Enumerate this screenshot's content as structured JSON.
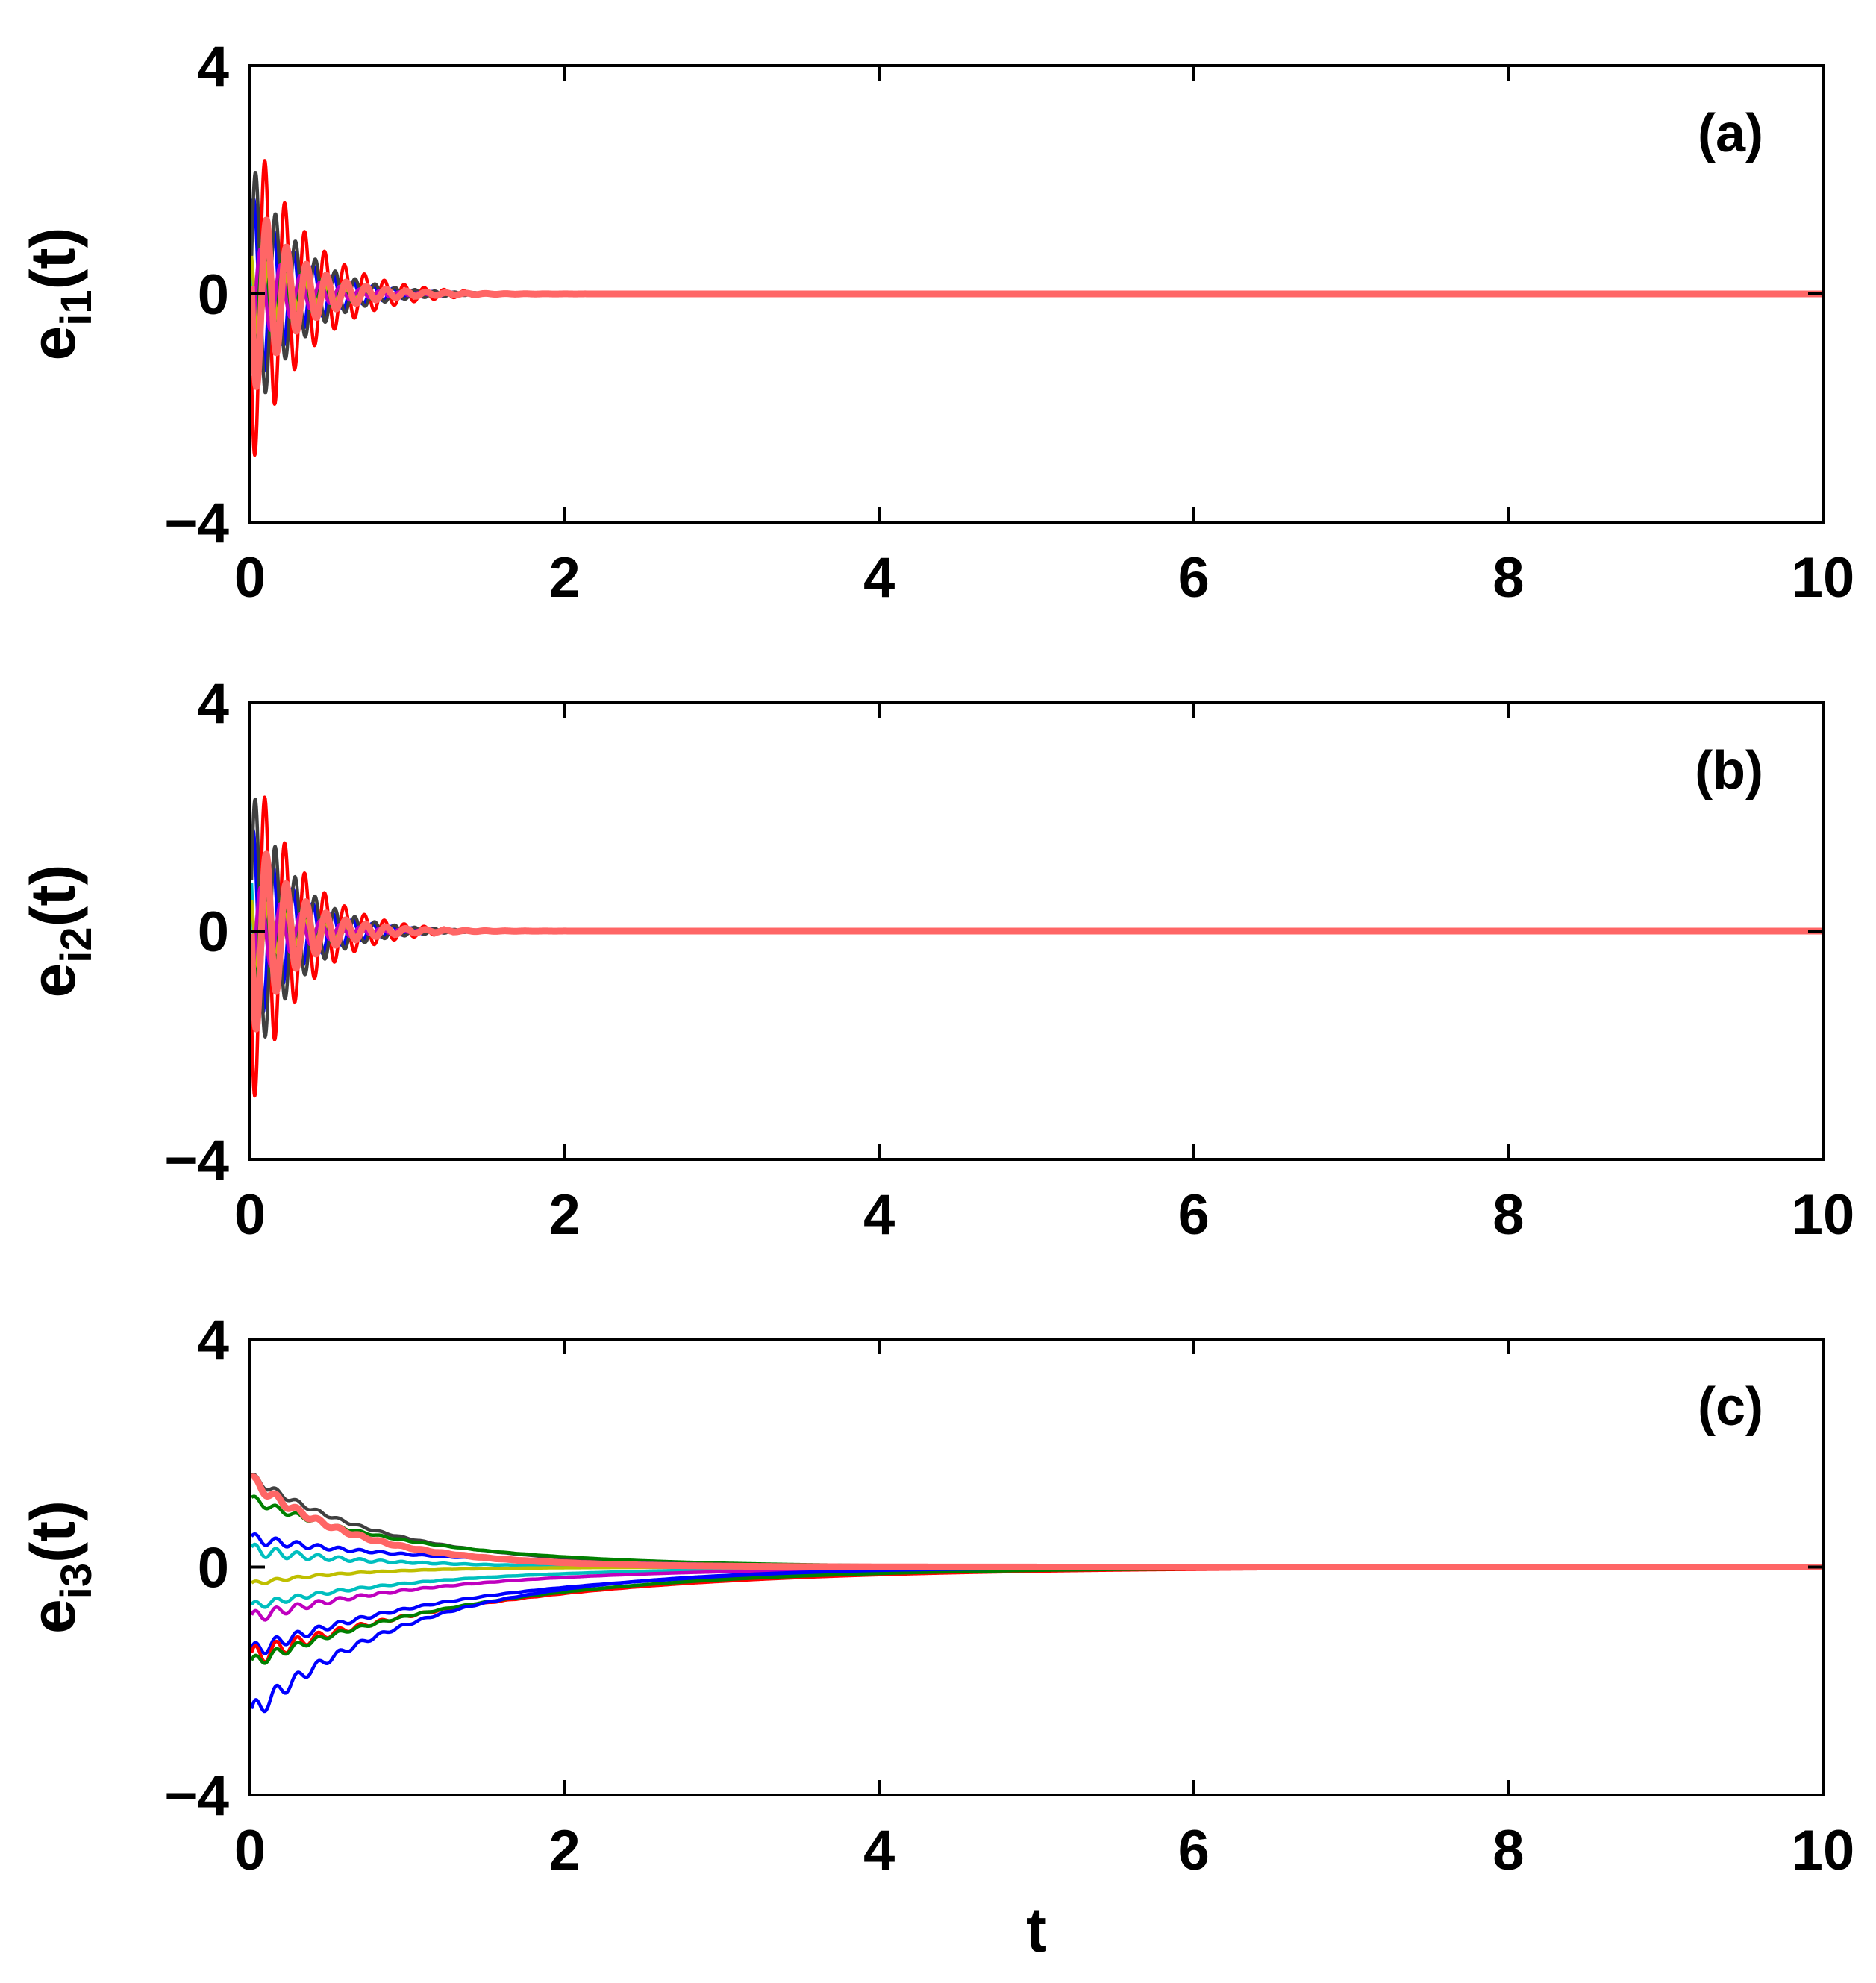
{
  "chart_data": [
    {
      "type": "line",
      "panel_label": "(a)",
      "ylabel": {
        "main": "e",
        "sub": "i1",
        "suffix": "(t)"
      },
      "xlabel": "",
      "xlim": [
        0,
        10
      ],
      "ylim": [
        -4,
        4
      ],
      "xticks": [
        "0",
        "2",
        "4",
        "6",
        "8",
        "10"
      ],
      "yticks": [
        "4",
        "0",
        "−4"
      ],
      "grid": false,
      "series": [
        {
          "color": "#ff0000",
          "kind": "osc",
          "amp": 3.1,
          "decay": 3.0,
          "freq": 7.9,
          "phase": 1.57
        },
        {
          "color": "#0000ff",
          "kind": "osc",
          "amp": 1.8,
          "decay": 3.2,
          "freq": 7.9,
          "phase": -1.2
        },
        {
          "color": "#404040",
          "kind": "osc",
          "amp": 2.4,
          "decay": 3.3,
          "freq": 7.9,
          "phase": -1.8
        },
        {
          "color": "#00bfbf",
          "kind": "osc",
          "amp": 1.5,
          "decay": 3.4,
          "freq": 7.9,
          "phase": 0.6
        },
        {
          "color": "#008000",
          "kind": "osc",
          "amp": 1.2,
          "decay": 3.4,
          "freq": 7.9,
          "phase": 2.3
        },
        {
          "color": "#bfbf00",
          "kind": "osc",
          "amp": 0.9,
          "decay": 3.5,
          "freq": 7.9,
          "phase": 0.2
        },
        {
          "color": "#bf00bf",
          "kind": "osc",
          "amp": 1.0,
          "decay": 3.5,
          "freq": 7.9,
          "phase": 2.9
        },
        {
          "color": "#ff6666",
          "kind": "osc",
          "amp": 1.9,
          "decay": 3.6,
          "freq": 7.9,
          "phase": 1.0,
          "thick": true
        }
      ]
    },
    {
      "type": "line",
      "panel_label": "(b)",
      "ylabel": {
        "main": "e",
        "sub": "i2",
        "suffix": "(t)"
      },
      "xlabel": "",
      "xlim": [
        0,
        10
      ],
      "ylim": [
        -4,
        4
      ],
      "xticks": [
        "0",
        "2",
        "4",
        "6",
        "8",
        "10"
      ],
      "yticks": [
        "4",
        "0",
        "−4"
      ],
      "grid": false,
      "series": [
        {
          "color": "#ff0000",
          "kind": "osc",
          "amp": 3.2,
          "decay": 3.3,
          "freq": 7.9,
          "phase": 1.57
        },
        {
          "color": "#0000ff",
          "kind": "osc",
          "amp": 1.9,
          "decay": 3.4,
          "freq": 7.9,
          "phase": -1.0
        },
        {
          "color": "#404040",
          "kind": "osc",
          "amp": 2.6,
          "decay": 3.5,
          "freq": 7.9,
          "phase": -1.7
        },
        {
          "color": "#00bfbf",
          "kind": "osc",
          "amp": 1.6,
          "decay": 3.6,
          "freq": 7.9,
          "phase": 0.5
        },
        {
          "color": "#008000",
          "kind": "osc",
          "amp": 1.3,
          "decay": 3.6,
          "freq": 7.9,
          "phase": 2.2
        },
        {
          "color": "#bfbf00",
          "kind": "osc",
          "amp": 0.8,
          "decay": 3.7,
          "freq": 7.9,
          "phase": 0.3
        },
        {
          "color": "#bf00bf",
          "kind": "osc",
          "amp": 1.0,
          "decay": 3.7,
          "freq": 7.9,
          "phase": 2.8
        },
        {
          "color": "#ff6666",
          "kind": "osc",
          "amp": 2.0,
          "decay": 3.8,
          "freq": 7.9,
          "phase": 1.1,
          "thick": true
        }
      ]
    },
    {
      "type": "line",
      "panel_label": "(c)",
      "ylabel": {
        "main": "e",
        "sub": "i3",
        "suffix": "(t)"
      },
      "xlabel": "t",
      "xlim": [
        0,
        10
      ],
      "ylim": [
        -4,
        4
      ],
      "xticks": [
        "0",
        "2",
        "4",
        "6",
        "8",
        "10"
      ],
      "yticks": [
        "4",
        "0",
        "−4"
      ],
      "grid": false,
      "series": [
        {
          "color": "#404040",
          "kind": "exp",
          "start": 1.6,
          "decay": 1.15,
          "ripple": 0.08
        },
        {
          "color": "#008000",
          "kind": "exp",
          "start": 1.2,
          "decay": 0.95,
          "ripple": 0.08
        },
        {
          "color": "#0000ff",
          "kind": "exp",
          "start": 0.5,
          "decay": 0.8,
          "ripple": 0.1
        },
        {
          "color": "#00bfbf",
          "kind": "exp",
          "start": 0.3,
          "decay": 1.3,
          "ripple": 0.12
        },
        {
          "color": "#bfbf00",
          "kind": "exp",
          "start": -0.3,
          "decay": 1.6,
          "ripple": 0.04
        },
        {
          "color": "#00bfbf",
          "kind": "exp",
          "start": -0.7,
          "decay": 0.9,
          "ripple": 0.08
        },
        {
          "color": "#bf00bf",
          "kind": "exp",
          "start": -0.9,
          "decay": 0.8,
          "ripple": 0.12
        },
        {
          "color": "#0000ff",
          "kind": "exp",
          "start": -1.5,
          "decay": 0.72,
          "ripple": 0.15
        },
        {
          "color": "#ff0000",
          "kind": "exp",
          "start": -1.6,
          "decay": 0.62,
          "ripple": 0.2
        },
        {
          "color": "#008000",
          "kind": "exp",
          "start": -1.7,
          "decay": 0.68,
          "ripple": 0.12
        },
        {
          "color": "#0000ff",
          "kind": "exp",
          "start": -2.6,
          "decay": 0.95,
          "ripple": 0.2
        },
        {
          "color": "#ff6666",
          "kind": "exp",
          "start": 1.55,
          "decay": 1.5,
          "ripple": 0.1,
          "thick": true
        }
      ]
    }
  ]
}
